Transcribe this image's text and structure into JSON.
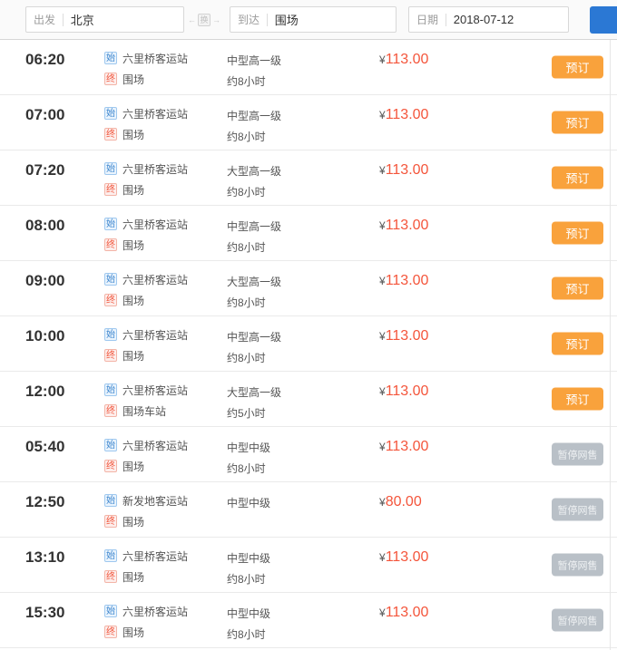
{
  "search": {
    "depart_label": "出发",
    "depart_value": "北京",
    "swap_left_arrow": "←",
    "swap_glyph": "换",
    "swap_right_arrow": "→",
    "arrive_label": "到达",
    "arrive_value": "围场",
    "date_label": "日期",
    "date_value": "2018-07-12"
  },
  "badges": {
    "origin": "始",
    "dest": "终"
  },
  "labels": {
    "currency": "¥"
  },
  "colors": {
    "accent_orange": "#f9a23c",
    "suspended_gray": "#b9c0c7",
    "price_red": "#f4553b",
    "badge_blue": "#3f87cf",
    "badge_orange": "#f2573d",
    "primary_blue": "#2b78d4"
  },
  "rows": [
    {
      "time": "06:20",
      "origin": "六里桥客运站",
      "destination": "围场",
      "bus_type": "中型高一级",
      "duration": "约8小时",
      "price": "113.00",
      "action_label": "预订",
      "status": "bookable"
    },
    {
      "time": "07:00",
      "origin": "六里桥客运站",
      "destination": "围场",
      "bus_type": "中型高一级",
      "duration": "约8小时",
      "price": "113.00",
      "action_label": "预订",
      "status": "bookable"
    },
    {
      "time": "07:20",
      "origin": "六里桥客运站",
      "destination": "围场",
      "bus_type": "大型高一级",
      "duration": "约8小时",
      "price": "113.00",
      "action_label": "预订",
      "status": "bookable"
    },
    {
      "time": "08:00",
      "origin": "六里桥客运站",
      "destination": "围场",
      "bus_type": "中型高一级",
      "duration": "约8小时",
      "price": "113.00",
      "action_label": "预订",
      "status": "bookable"
    },
    {
      "time": "09:00",
      "origin": "六里桥客运站",
      "destination": "围场",
      "bus_type": "大型高一级",
      "duration": "约8小时",
      "price": "113.00",
      "action_label": "预订",
      "status": "bookable"
    },
    {
      "time": "10:00",
      "origin": "六里桥客运站",
      "destination": "围场",
      "bus_type": "中型高一级",
      "duration": "约8小时",
      "price": "113.00",
      "action_label": "预订",
      "status": "bookable"
    },
    {
      "time": "12:00",
      "origin": "六里桥客运站",
      "destination": "围场车站",
      "bus_type": "大型高一级",
      "duration": "约5小时",
      "price": "113.00",
      "action_label": "预订",
      "status": "bookable"
    },
    {
      "time": "05:40",
      "origin": "六里桥客运站",
      "destination": "围场",
      "bus_type": "中型中级",
      "duration": "约8小时",
      "price": "113.00",
      "action_label": "暂停网售",
      "status": "suspended"
    },
    {
      "time": "12:50",
      "origin": "新发地客运站",
      "destination": "围场",
      "bus_type": "中型中级",
      "duration": "",
      "price": "80.00",
      "action_label": "暂停网售",
      "status": "suspended"
    },
    {
      "time": "13:10",
      "origin": "六里桥客运站",
      "destination": "围场",
      "bus_type": "中型中级",
      "duration": "约8小时",
      "price": "113.00",
      "action_label": "暂停网售",
      "status": "suspended"
    },
    {
      "time": "15:30",
      "origin": "六里桥客运站",
      "destination": "围场",
      "bus_type": "中型中级",
      "duration": "约8小时",
      "price": "113.00",
      "action_label": "暂停网售",
      "status": "suspended"
    }
  ]
}
